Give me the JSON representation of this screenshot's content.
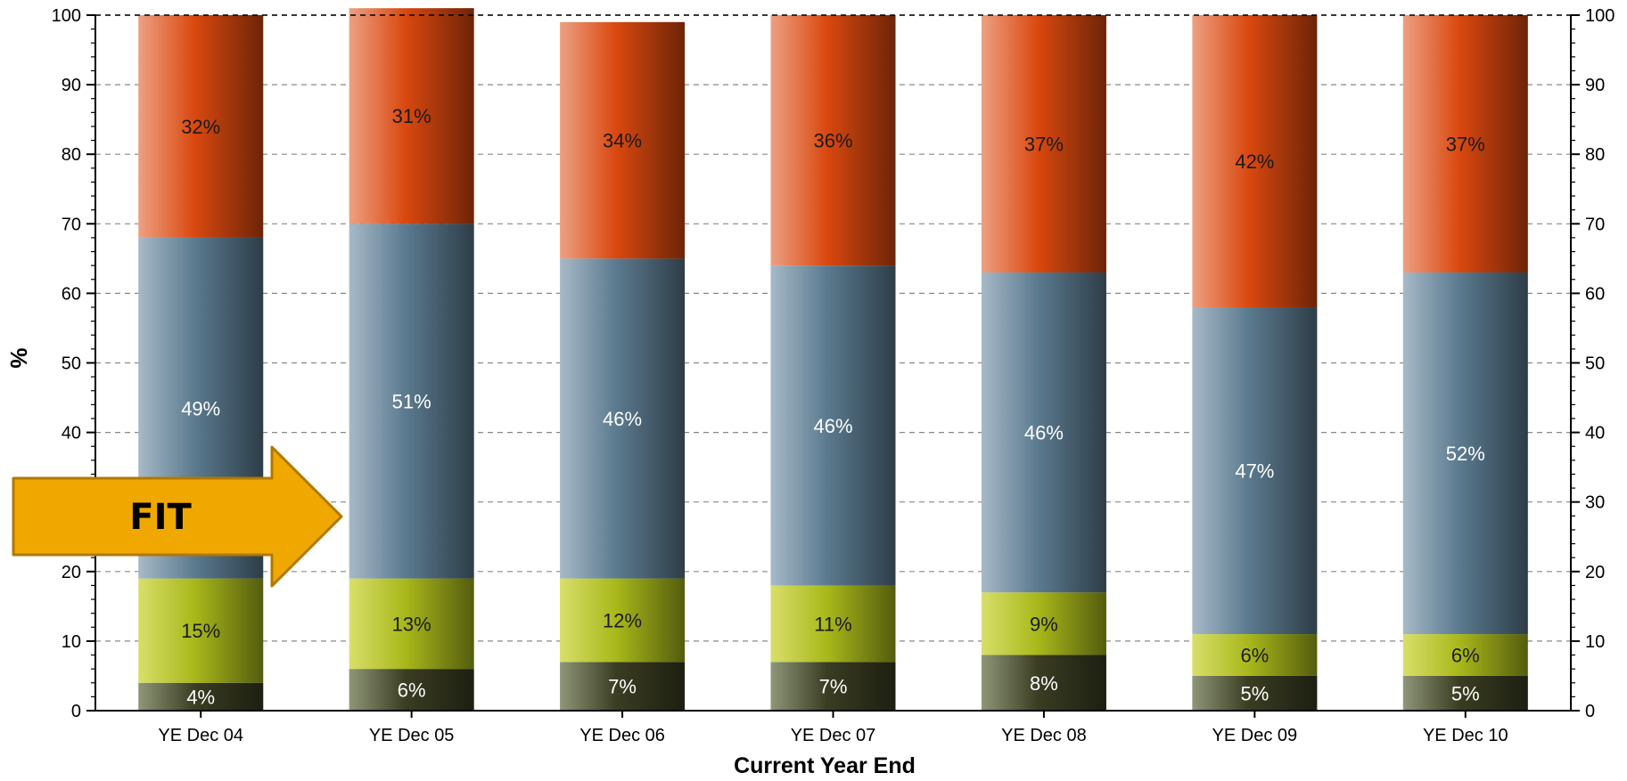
{
  "chart_data": {
    "type": "bar",
    "stacked": true,
    "categories": [
      "YE Dec 04",
      "YE Dec 05",
      "YE Dec 06",
      "YE Dec 07",
      "YE Dec 08",
      "YE Dec 09",
      "YE Dec 10"
    ],
    "series": [
      {
        "values": [
          4,
          6,
          7,
          7,
          8,
          5,
          5
        ],
        "labels": [
          "4%",
          "6%",
          "7%",
          "7%",
          "8%",
          "5%",
          "5%"
        ],
        "color": "#3a3d22",
        "color_light": "#8f9678",
        "label_color": "#ffffff"
      },
      {
        "values": [
          15,
          13,
          12,
          11,
          9,
          6,
          6
        ],
        "labels": [
          "15%",
          "13%",
          "12%",
          "11%",
          "9%",
          "6%",
          "6%"
        ],
        "color": "#a8b81a",
        "color_light": "#d8df6a",
        "label_color": "#1a1a1a"
      },
      {
        "values": [
          49,
          51,
          46,
          46,
          46,
          47,
          52
        ],
        "labels": [
          "49%",
          "51%",
          "46%",
          "46%",
          "46%",
          "47%",
          "52%"
        ],
        "color": "#5b7a8f",
        "color_light": "#a7b9c7",
        "label_color": "#ffffff"
      },
      {
        "values": [
          32,
          31,
          34,
          36,
          37,
          42,
          37
        ],
        "labels": [
          "32%",
          "31%",
          "34%",
          "36%",
          "37%",
          "42%",
          "37%"
        ],
        "color": "#d9480f",
        "color_light": "#eda083",
        "label_color": "#1a1a1a"
      }
    ],
    "xlabel": "Current Year End",
    "ylabel": "%",
    "ylim": [
      0,
      100
    ],
    "yticks": [
      0,
      10,
      20,
      30,
      40,
      50,
      60,
      70,
      80,
      90,
      100
    ],
    "right_axis": true,
    "grid": true,
    "grid_style": "dashed",
    "legend": "none"
  },
  "annotation": {
    "arrow_text": "FIT",
    "arrow_color": "#f0a800",
    "arrow_border": "#b07800",
    "arrow_target": "YE Dec 04"
  }
}
